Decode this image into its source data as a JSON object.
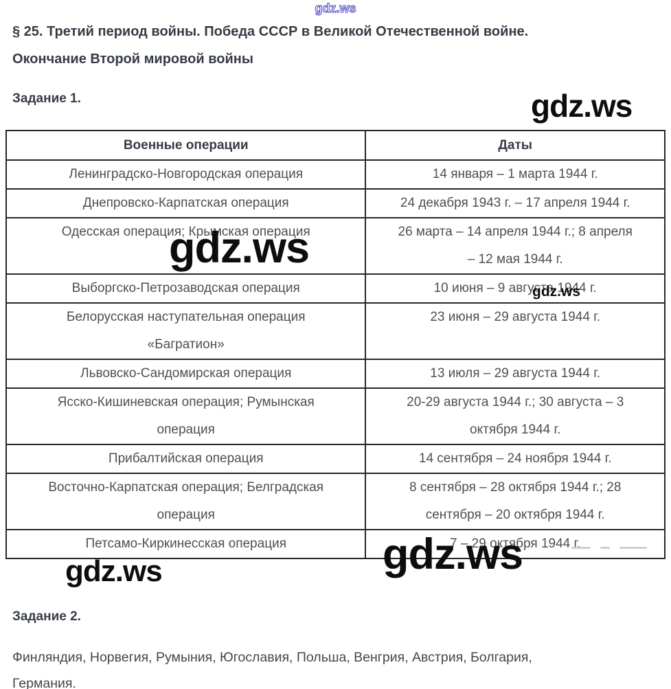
{
  "watermark": {
    "text": "gdz.ws"
  },
  "header": {
    "title_line1": "§ 25. Третий период войны. Победа СССР в Великой Отечественной войне.",
    "title_line2": "Окончание Второй мировой войны"
  },
  "task1": {
    "label": "Задание 1."
  },
  "table": {
    "columns": [
      "Военные операции",
      "Даты"
    ],
    "rows": [
      {
        "operation": [
          "Ленинградско-Новгородская операция"
        ],
        "dates": [
          "14 января – 1 марта 1944 г."
        ]
      },
      {
        "operation": [
          "Днепровско-Карпатская операция"
        ],
        "dates": [
          "24 декабря 1943 г. – 17 апреля 1944 г."
        ]
      },
      {
        "operation": [
          "Одесская операция; Крымская операция"
        ],
        "dates": [
          "26 марта – 14 апреля 1944 г.; 8 апреля",
          "– 12 мая 1944 г."
        ]
      },
      {
        "operation": [
          "Выборгско-Петрозаводская операция"
        ],
        "dates": [
          "10 июня – 9 августа 1944 г."
        ]
      },
      {
        "operation": [
          "Белорусская наступательная операция",
          "«Багратион»"
        ],
        "dates": [
          "23 июня – 29 августа 1944 г."
        ]
      },
      {
        "operation": [
          "Львовско-Сандомирская операция"
        ],
        "dates": [
          "13 июля – 29 августа 1944 г."
        ]
      },
      {
        "operation": [
          "Ясско-Кишиневская операция; Румынская",
          "операция"
        ],
        "dates": [
          "20-29 августа 1944 г.; 30 августа – 3",
          "октября 1944 г."
        ]
      },
      {
        "operation": [
          "Прибалтийская операция"
        ],
        "dates": [
          "14 сентября – 24 ноября 1944 г."
        ]
      },
      {
        "operation": [
          "Восточно-Карпатская операция; Белградская",
          "операция"
        ],
        "dates": [
          "8 сентября – 28 октября 1944 г.; 28",
          "сентября – 20 октября 1944 г."
        ]
      },
      {
        "operation": [
          "Петсамо-Киркинесская операция"
        ],
        "dates": [
          "7 – 29 октября 1944 г."
        ]
      }
    ]
  },
  "task2": {
    "label": "Задание 2.",
    "text_line1": "Финляндия, Норвегия, Румыния, Югославия, Польша, Венгрия, Австрия, Болгария,",
    "text_line2": "Германия."
  },
  "colors": {
    "heading": "#363b45",
    "cell_text": "#4c4f56",
    "body_text": "#44464c",
    "table_border": "#262626",
    "watermark": "#0d0d0d",
    "watermark_outline": "#4444c4"
  }
}
